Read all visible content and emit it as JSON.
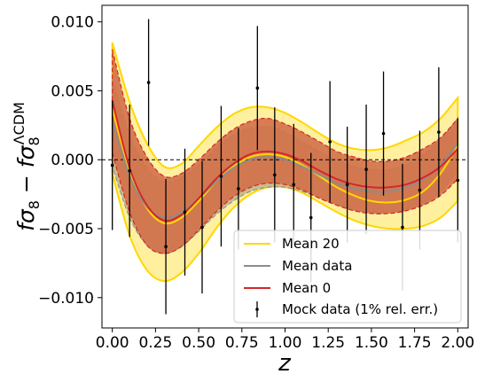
{
  "chart_data": {
    "type": "line",
    "title": "",
    "xlabel": "z",
    "ylabel": {
      "main": "fσ",
      "sub1": "8",
      "minus": " − fσ",
      "sub2": "8",
      "sup2": "ΛCDM"
    },
    "xlim": [
      -0.06,
      2.06
    ],
    "ylim": [
      -0.0122,
      0.0112
    ],
    "xticks": [
      0.0,
      0.25,
      0.5,
      0.75,
      1.0,
      1.25,
      1.5,
      1.75,
      2.0
    ],
    "xtick_labels": [
      "0.00",
      "0.25",
      "0.50",
      "0.75",
      "1.00",
      "1.25",
      "1.50",
      "1.75",
      "2.00"
    ],
    "yticks": [
      -0.01,
      -0.005,
      0.0,
      0.005,
      0.01
    ],
    "ytick_labels": [
      "−0.010",
      "−0.005",
      "0.000",
      "0.005",
      "0.010"
    ],
    "zero_line": true,
    "legend_position": "lower right",
    "colors": {
      "mean20": "#ffd700",
      "band20": "#fff0a0",
      "meandata": "#8c8c8c",
      "banddata": "#b9b08a",
      "mean0": "#d62728",
      "band0": "#d2704a",
      "points": "#000000"
    },
    "x": [
      0.0,
      0.1,
      0.2,
      0.3,
      0.4,
      0.5,
      0.6,
      0.7,
      0.8,
      0.9,
      1.0,
      1.1,
      1.2,
      1.3,
      1.4,
      1.5,
      1.6,
      1.7,
      1.8,
      1.9,
      2.0
    ],
    "series": [
      {
        "name": "Mean 20",
        "values": [
          0.0037,
          -0.0008,
          -0.0035,
          -0.0046,
          -0.0042,
          -0.003,
          -0.0016,
          -0.0005,
          0.0002,
          0.0004,
          0.0002,
          -0.0004,
          -0.0012,
          -0.002,
          -0.0026,
          -0.003,
          -0.0031,
          -0.0029,
          -0.0023,
          -0.001,
          0.001
        ],
        "band_lower": [
          -0.001,
          -0.0055,
          -0.008,
          -0.0088,
          -0.0082,
          -0.0068,
          -0.005,
          -0.0035,
          -0.0025,
          -0.002,
          -0.002,
          -0.0024,
          -0.0031,
          -0.0038,
          -0.0044,
          -0.0048,
          -0.005,
          -0.005,
          -0.0048,
          -0.0042,
          -0.003
        ],
        "band_upper": [
          0.0085,
          0.0042,
          0.0012,
          -0.0005,
          -0.0003,
          0.001,
          0.0023,
          0.0033,
          0.0038,
          0.0038,
          0.0034,
          0.0027,
          0.0019,
          0.0012,
          0.0008,
          0.0007,
          0.0009,
          0.0014,
          0.002,
          0.003,
          0.0045
        ]
      },
      {
        "name": "Mean data",
        "values": [
          0.0028,
          -0.0012,
          -0.0034,
          -0.0042,
          -0.0038,
          -0.0028,
          -0.0016,
          -0.0006,
          0.0,
          0.0002,
          0.0,
          -0.0005,
          -0.0011,
          -0.0017,
          -0.0021,
          -0.0023,
          -0.0023,
          -0.002,
          -0.0014,
          -0.0004,
          0.0012
        ],
        "band_lower": [
          -0.0005,
          -0.0042,
          -0.0062,
          -0.0068,
          -0.0063,
          -0.0052,
          -0.004,
          -0.003,
          -0.0023,
          -0.002,
          -0.002,
          -0.0023,
          -0.0028,
          -0.0033,
          -0.0037,
          -0.0039,
          -0.0039,
          -0.0037,
          -0.0032,
          -0.0023,
          -0.0008
        ],
        "band_upper": [
          0.0058,
          0.0018,
          -0.0006,
          -0.0016,
          -0.0013,
          -0.0004,
          0.0008,
          0.0018,
          0.0023,
          0.0024,
          0.002,
          0.0013,
          0.0006,
          0.0,
          -0.0005,
          -0.0007,
          -0.0007,
          -0.0004,
          0.0004,
          0.0015,
          0.003
        ]
      },
      {
        "name": "Mean 0",
        "values": [
          0.0043,
          -0.0006,
          -0.0033,
          -0.0044,
          -0.004,
          -0.0028,
          -0.0014,
          -0.0003,
          0.0004,
          0.0006,
          0.0004,
          -0.0001,
          -0.0008,
          -0.0014,
          -0.0018,
          -0.002,
          -0.002,
          -0.0018,
          -0.0013,
          -0.0005,
          0.0008
        ],
        "band_lower": [
          0.0005,
          -0.0038,
          -0.0062,
          -0.0068,
          -0.0063,
          -0.0051,
          -0.0038,
          -0.0027,
          -0.002,
          -0.0017,
          -0.0018,
          -0.0022,
          -0.0028,
          -0.0033,
          -0.0037,
          -0.0039,
          -0.0039,
          -0.0037,
          -0.0033,
          -0.0026,
          -0.0014
        ],
        "band_upper": [
          0.008,
          0.003,
          0.0002,
          -0.0012,
          -0.001,
          0.0,
          0.0012,
          0.0022,
          0.0028,
          0.003,
          0.0026,
          0.002,
          0.0013,
          0.0006,
          0.0002,
          -0.0001,
          -0.0001,
          0.0002,
          0.0008,
          0.0016,
          0.003
        ]
      }
    ],
    "mock_data": {
      "name": "Mock data (1% rel. err.)",
      "x": [
        0.0,
        0.1,
        0.21,
        0.31,
        0.42,
        0.52,
        0.63,
        0.73,
        0.84,
        0.94,
        1.05,
        1.15,
        1.26,
        1.36,
        1.47,
        1.57,
        1.68,
        1.78,
        1.89,
        2.0
      ],
      "y": [
        -0.0004,
        -0.0008,
        0.0056,
        -0.0063,
        -0.0038,
        -0.0049,
        -0.0012,
        -0.0021,
        0.0052,
        -0.0011,
        -0.0018,
        -0.0042,
        0.0013,
        -0.0018,
        -0.0007,
        0.0019,
        -0.0049,
        -0.0022,
        0.002,
        -0.0015
      ],
      "err": [
        0.0047,
        0.0048,
        0.0046,
        0.0049,
        0.0046,
        0.0048,
        0.0051,
        0.0044,
        0.0045,
        0.0049,
        0.0044,
        0.0047,
        0.0044,
        0.0042,
        0.0047,
        0.0045,
        0.0046,
        0.0043,
        0.0047,
        0.0045
      ]
    }
  }
}
